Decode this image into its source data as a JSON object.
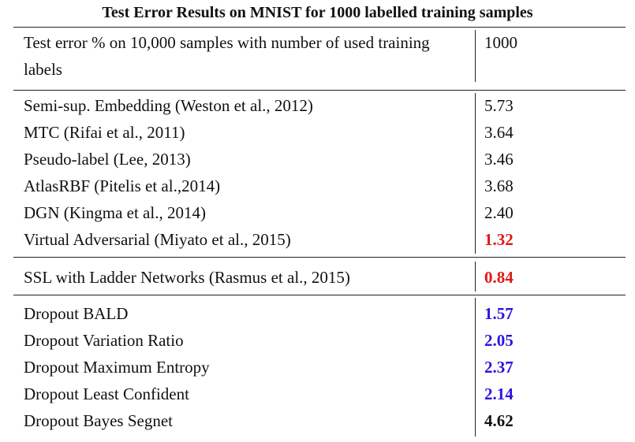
{
  "table": {
    "caption": "Test Error Results on MNIST for 1000 labelled training samples",
    "header": {
      "description_line1": "Test error % on 10,000 samples with number of used training",
      "description_line2": "labels",
      "column": "1000"
    },
    "groups": [
      {
        "rows": [
          {
            "method": "Semi-sup. Embedding (Weston et al., 2012)",
            "value": "5.73",
            "bold": false,
            "color": "#111111"
          },
          {
            "method": "MTC (Rifai et al., 2011)",
            "value": "3.64",
            "bold": false,
            "color": "#111111"
          },
          {
            "method": "Pseudo-label (Lee, 2013)",
            "value": "3.46",
            "bold": false,
            "color": "#111111"
          },
          {
            "method": "AtlasRBF (Pitelis et al.,2014)",
            "value": "3.68",
            "bold": false,
            "color": "#111111"
          },
          {
            "method": "DGN (Kingma et al., 2014)",
            "value": "2.40",
            "bold": false,
            "color": "#111111"
          },
          {
            "method": "Virtual Adversarial (Miyato et al., 2015)",
            "value": "1.32",
            "bold": true,
            "color": "#e21818"
          }
        ]
      },
      {
        "rows": [
          {
            "method": "SSL with Ladder Networks (Rasmus et al., 2015)",
            "value": "0.84",
            "bold": true,
            "color": "#e21818"
          }
        ]
      },
      {
        "rows": [
          {
            "method": "Dropout BALD",
            "value": "1.57",
            "bold": true,
            "color": "#2a14e0"
          },
          {
            "method": "Dropout Variation Ratio",
            "value": "2.05",
            "bold": true,
            "color": "#2a14e0"
          },
          {
            "method": "Dropout Maximum Entropy",
            "value": "2.37",
            "bold": true,
            "color": "#2a14e0"
          },
          {
            "method": "Dropout Least Confident",
            "value": "2.14",
            "bold": true,
            "color": "#2a14e0"
          },
          {
            "method": "Dropout Bayes Segnet",
            "value": "4.62",
            "bold": true,
            "color": "#111111"
          }
        ]
      }
    ]
  }
}
